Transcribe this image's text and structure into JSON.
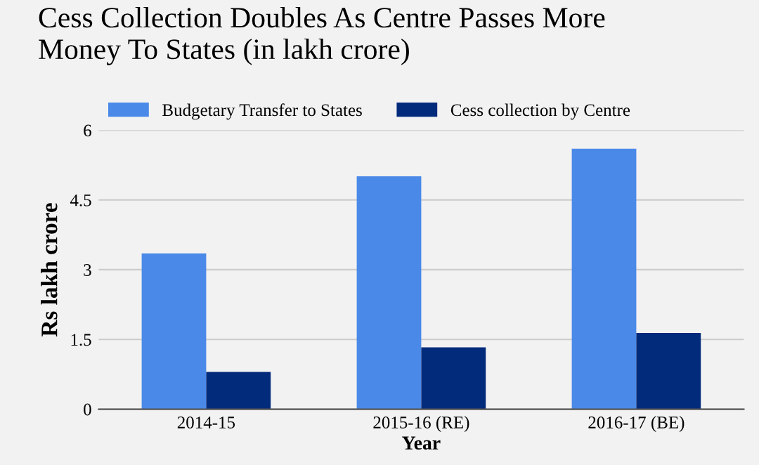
{
  "chart_data": {
    "type": "bar",
    "title": "Cess Collection Doubles As Centre Passes More\nMoney To States (in lakh crore)",
    "xlabel": "Year",
    "ylabel": "Rs lakh crore",
    "categories": [
      "2014-15",
      "2015-16 (RE)",
      "2016-17 (BE)"
    ],
    "series": [
      {
        "name": "Budgetary Transfer to States",
        "color": "#4a89e8",
        "values": [
          3.35,
          5.01,
          5.6
        ]
      },
      {
        "name": "Cess collection by Centre",
        "color": "#022b7b",
        "values": [
          0.8,
          1.33,
          1.64
        ]
      }
    ],
    "ylim": [
      0,
      6
    ],
    "yticks": [
      0,
      {
        "value": 1.5,
        "label": "1.5"
      },
      3,
      {
        "value": 4.5,
        "label": "4.5"
      },
      6
    ],
    "grid": "y",
    "legend": "top left"
  }
}
